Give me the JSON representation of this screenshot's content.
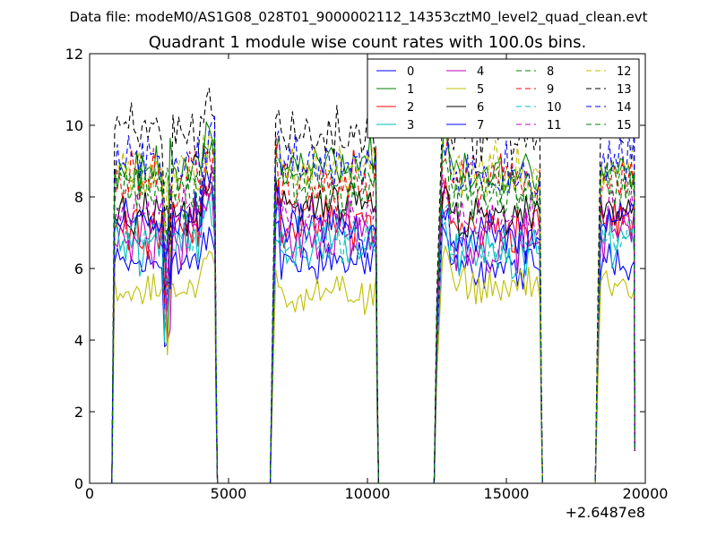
{
  "figure": {
    "suptitle": "Data file: modeM0/AS1G08_028T01_9000002112_14353cztM0_level2_quad_clean.evt",
    "offset_label": "+2.6487e8"
  },
  "chart_data": {
    "type": "line",
    "title": "Quadrant 1 module wise count rates with 100.0s bins.",
    "xlabel": "",
    "ylabel": "",
    "xlim": [
      0,
      20000
    ],
    "ylim": [
      0,
      12
    ],
    "x_offset": 264870000,
    "xticks": [
      0,
      5000,
      10000,
      15000,
      20000
    ],
    "xtick_labels": [
      "0",
      "5000",
      "10000",
      "15000",
      "20000"
    ],
    "yticks": [
      0,
      2,
      4,
      6,
      8,
      10,
      12
    ],
    "ytick_labels": [
      "0",
      "2",
      "4",
      "6",
      "8",
      "10",
      "12"
    ],
    "grid": false,
    "legend": {
      "placement": "top-right",
      "columns": 4
    },
    "segments": [
      {
        "start": 900,
        "end": 4500,
        "fall": 4600
      },
      {
        "rise": 6600,
        "start": 6700,
        "end": 10300,
        "fall": 10400
      },
      {
        "rise": 12500,
        "start": 12700,
        "end": 16200,
        "fall": 16300
      },
      {
        "rise": 18300,
        "start": 18400,
        "end": 19600
      }
    ],
    "series": [
      {
        "name": "0",
        "color": "#0000ff",
        "dash": "solid",
        "levels": [
          6.1,
          6.2,
          6.0,
          6.2
        ]
      },
      {
        "name": "1",
        "color": "#008000",
        "dash": "solid",
        "levels": [
          8.8,
          8.9,
          8.6,
          8.9
        ]
      },
      {
        "name": "2",
        "color": "#ff0000",
        "dash": "solid",
        "levels": [
          7.2,
          7.3,
          7.1,
          7.4
        ]
      },
      {
        "name": "3",
        "color": "#00bfbf",
        "dash": "solid",
        "levels": [
          6.8,
          6.7,
          6.3,
          6.9
        ]
      },
      {
        "name": "4",
        "color": "#bf00bf",
        "dash": "solid",
        "levels": [
          6.9,
          6.9,
          6.6,
          7.0
        ]
      },
      {
        "name": "5",
        "color": "#bfbf00",
        "dash": "solid",
        "levels": [
          5.4,
          5.3,
          5.5,
          5.5
        ]
      },
      {
        "name": "6",
        "color": "#000000",
        "dash": "solid",
        "levels": [
          7.5,
          7.7,
          7.4,
          7.6
        ]
      },
      {
        "name": "7",
        "color": "#0000ff",
        "dash": "solid",
        "levels": [
          7.3,
          7.1,
          6.9,
          7.3
        ]
      },
      {
        "name": "8",
        "color": "#008000",
        "dash": "dashed",
        "levels": [
          8.2,
          8.2,
          8.0,
          8.3
        ]
      },
      {
        "name": "9",
        "color": "#ff0000",
        "dash": "dashed",
        "levels": [
          8.4,
          8.3,
          8.5,
          8.5
        ]
      },
      {
        "name": "10",
        "color": "#00bfbf",
        "dash": "dashed",
        "levels": [
          7.0,
          6.8,
          6.6,
          7.0
        ]
      },
      {
        "name": "11",
        "color": "#bf00bf",
        "dash": "dashed",
        "levels": [
          7.6,
          7.5,
          7.4,
          7.7
        ]
      },
      {
        "name": "12",
        "color": "#bfbf00",
        "dash": "dashed",
        "levels": [
          8.6,
          8.8,
          8.7,
          8.8
        ]
      },
      {
        "name": "13",
        "color": "#000000",
        "dash": "dashed",
        "levels": [
          9.8,
          9.7,
          9.8,
          10.0
        ]
      },
      {
        "name": "14",
        "color": "#0000ff",
        "dash": "dashed",
        "levels": [
          8.9,
          8.9,
          8.7,
          9.0
        ]
      },
      {
        "name": "15",
        "color": "#008000",
        "dash": "dashed",
        "levels": [
          8.5,
          8.5,
          8.3,
          8.6
        ]
      }
    ]
  }
}
